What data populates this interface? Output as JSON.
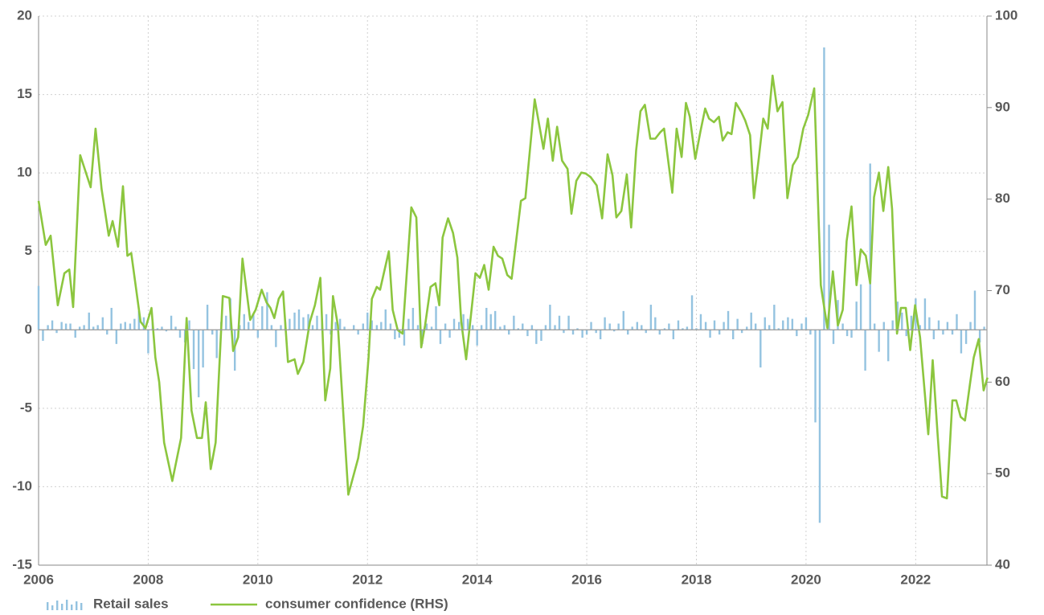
{
  "chart_data": {
    "type": "combo",
    "xlim": [
      2006,
      2023.3
    ],
    "xticks": [
      2006,
      2008,
      2010,
      2012,
      2014,
      2016,
      2018,
      2020,
      2022
    ],
    "ylim": [
      -15,
      20
    ],
    "yticks": [
      -15,
      -10,
      -5,
      0,
      5,
      10,
      15,
      20
    ],
    "y2lim": [
      40,
      100
    ],
    "y2ticks": [
      40,
      50,
      60,
      70,
      80,
      90,
      100
    ],
    "grid": true,
    "series": [
      {
        "name": "Retail sales",
        "type": "bar",
        "color": "#94c3e0",
        "x": [
          2006.0,
          2006.08,
          2006.17,
          2006.25,
          2006.33,
          2006.42,
          2006.5,
          2006.58,
          2006.67,
          2006.75,
          2006.83,
          2006.92,
          2007.0,
          2007.08,
          2007.17,
          2007.25,
          2007.33,
          2007.42,
          2007.5,
          2007.58,
          2007.67,
          2007.75,
          2007.83,
          2007.92,
          2008.0,
          2008.08,
          2008.17,
          2008.25,
          2008.33,
          2008.42,
          2008.5,
          2008.58,
          2008.67,
          2008.75,
          2008.83,
          2008.92,
          2009.0,
          2009.08,
          2009.17,
          2009.25,
          2009.33,
          2009.42,
          2009.5,
          2009.58,
          2009.67,
          2009.75,
          2009.83,
          2009.92,
          2010.0,
          2010.08,
          2010.17,
          2010.25,
          2010.33,
          2010.42,
          2010.5,
          2010.58,
          2010.67,
          2010.75,
          2010.83,
          2010.92,
          2011.0,
          2011.08,
          2011.17,
          2011.25,
          2011.33,
          2011.42,
          2011.5,
          2011.58,
          2011.67,
          2011.75,
          2011.83,
          2011.92,
          2012.0,
          2012.08,
          2012.17,
          2012.25,
          2012.33,
          2012.42,
          2012.5,
          2012.58,
          2012.67,
          2012.75,
          2012.83,
          2012.92,
          2013.0,
          2013.08,
          2013.17,
          2013.25,
          2013.33,
          2013.42,
          2013.5,
          2013.58,
          2013.67,
          2013.75,
          2013.83,
          2013.92,
          2014.0,
          2014.08,
          2014.17,
          2014.25,
          2014.33,
          2014.42,
          2014.5,
          2014.58,
          2014.67,
          2014.75,
          2014.83,
          2014.92,
          2015.0,
          2015.08,
          2015.17,
          2015.25,
          2015.33,
          2015.42,
          2015.5,
          2015.58,
          2015.67,
          2015.75,
          2015.83,
          2015.92,
          2016.0,
          2016.08,
          2016.17,
          2016.25,
          2016.33,
          2016.42,
          2016.5,
          2016.58,
          2016.67,
          2016.75,
          2016.83,
          2016.92,
          2017.0,
          2017.08,
          2017.17,
          2017.25,
          2017.33,
          2017.42,
          2017.5,
          2017.58,
          2017.67,
          2017.75,
          2017.83,
          2017.92,
          2018.0,
          2018.08,
          2018.17,
          2018.25,
          2018.33,
          2018.42,
          2018.5,
          2018.58,
          2018.67,
          2018.75,
          2018.83,
          2018.92,
          2019.0,
          2019.08,
          2019.17,
          2019.25,
          2019.33,
          2019.42,
          2019.5,
          2019.58,
          2019.67,
          2019.75,
          2019.83,
          2019.92,
          2020.0,
          2020.08,
          2020.17,
          2020.25,
          2020.33,
          2020.42,
          2020.5,
          2020.58,
          2020.67,
          2020.75,
          2020.83,
          2020.92,
          2021.0,
          2021.08,
          2021.17,
          2021.25,
          2021.33,
          2021.42,
          2021.5,
          2021.58,
          2021.67,
          2021.75,
          2021.83,
          2021.92,
          2022.0,
          2022.08,
          2022.17,
          2022.25,
          2022.33,
          2022.42,
          2022.5,
          2022.58,
          2022.67,
          2022.75,
          2022.83,
          2022.92,
          2023.0,
          2023.08,
          2023.17,
          2023.25
        ],
        "values": [
          2.8,
          -0.7,
          0.3,
          0.6,
          -0.2,
          0.5,
          0.4,
          0.4,
          -0.5,
          0.2,
          0.3,
          1.1,
          0.2,
          0.3,
          0.8,
          -0.3,
          1.4,
          -0.9,
          0.4,
          0.5,
          0.4,
          0.7,
          1.2,
          0.8,
          -1.5,
          0.5,
          0.1,
          0.2,
          -0.1,
          0.9,
          0.2,
          -0.5,
          -0.8,
          0.6,
          -2.5,
          -4.3,
          -2.4,
          1.6,
          -0.3,
          -1.8,
          0.5,
          0.9,
          2.0,
          -2.6,
          0.3,
          1.0,
          0.5,
          1.0,
          -0.5,
          1.5,
          2.4,
          0.3,
          -1.1,
          0.3,
          0.5,
          0.7,
          1.1,
          1.3,
          0.8,
          1.0,
          0.3,
          0.9,
          0.7,
          1.0,
          -0.3,
          0.5,
          0.7,
          0.2,
          0.0,
          0.3,
          -0.3,
          0.4,
          1.1,
          0.6,
          0.3,
          0.5,
          1.3,
          0.4,
          -0.6,
          -0.5,
          -1.0,
          0.7,
          1.4,
          0.3,
          -0.9,
          0.4,
          0.2,
          1.5,
          -0.9,
          0.4,
          -0.5,
          0.7,
          0.5,
          1.0,
          0.7,
          0.3,
          -1.0,
          0.3,
          1.4,
          1.0,
          1.2,
          0.2,
          0.3,
          -0.3,
          0.9,
          0.1,
          0.4,
          -0.4,
          0.3,
          -0.9,
          -0.7,
          0.3,
          1.6,
          0.3,
          0.9,
          -0.2,
          0.9,
          -0.3,
          0.1,
          -0.5,
          -0.3,
          0.5,
          -0.2,
          -0.6,
          0.8,
          0.4,
          -0.1,
          0.4,
          1.2,
          -0.3,
          0.2,
          0.5,
          0.3,
          -0.2,
          1.6,
          0.8,
          -0.3,
          0.1,
          0.4,
          -0.6,
          0.6,
          0.1,
          0.2,
          2.2,
          0.1,
          1.0,
          0.5,
          -0.5,
          0.6,
          -0.3,
          0.5,
          1.2,
          -0.6,
          0.7,
          -0.2,
          0.2,
          1.1,
          0.4,
          -2.4,
          0.8,
          0.3,
          1.6,
          0.1,
          0.6,
          0.8,
          0.7,
          -0.4,
          0.4,
          0.8,
          -0.3,
          -5.9,
          -12.3,
          18.0,
          6.7,
          -0.9,
          1.9,
          0.4,
          -0.4,
          -0.5,
          1.8,
          2.9,
          -2.6,
          10.6,
          0.4,
          -1.4,
          0.5,
          -2.0,
          0.6,
          1.8,
          1.1,
          -0.4,
          0.9,
          2.0,
          0.3,
          2.0,
          0.8,
          -0.6,
          0.6,
          -0.3,
          0.5,
          -0.3,
          1.0,
          -1.5,
          -0.9,
          0.5,
          2.5,
          -0.8,
          0.2
        ]
      },
      {
        "name": "consumer confidence (RHS)",
        "type": "line",
        "axis": "y2",
        "color": "#8cc63f",
        "x": [
          2006.0,
          2006.13,
          2006.22,
          2006.35,
          2006.47,
          2006.56,
          2006.63,
          2006.76,
          2006.95,
          2007.04,
          2007.15,
          2007.28,
          2007.35,
          2007.45,
          2007.54,
          2007.62,
          2007.69,
          2007.86,
          2007.95,
          2008.06,
          2008.13,
          2008.2,
          2008.29,
          2008.44,
          2008.6,
          2008.7,
          2008.79,
          2008.89,
          2008.98,
          2009.05,
          2009.14,
          2009.23,
          2009.36,
          2009.48,
          2009.55,
          2009.64,
          2009.72,
          2009.86,
          2009.96,
          2010.07,
          2010.16,
          2010.23,
          2010.3,
          2010.38,
          2010.46,
          2010.55,
          2010.67,
          2010.73,
          2010.83,
          2010.95,
          2011.04,
          2011.14,
          2011.23,
          2011.32,
          2011.37,
          2011.46,
          2011.65,
          2011.83,
          2011.92,
          2012.02,
          2012.08,
          2012.17,
          2012.23,
          2012.39,
          2012.46,
          2012.55,
          2012.64,
          2012.8,
          2012.89,
          2012.98,
          2013.05,
          2013.15,
          2013.24,
          2013.31,
          2013.37,
          2013.47,
          2013.56,
          2013.64,
          2013.71,
          2013.8,
          2013.89,
          2013.97,
          2014.05,
          2014.13,
          2014.21,
          2014.3,
          2014.38,
          2014.46,
          2014.55,
          2014.63,
          2014.8,
          2014.88,
          2015.05,
          2015.21,
          2015.29,
          2015.38,
          2015.46,
          2015.55,
          2015.65,
          2015.72,
          2015.81,
          2015.9,
          2015.98,
          2016.07,
          2016.18,
          2016.28,
          2016.38,
          2016.47,
          2016.54,
          2016.63,
          2016.73,
          2016.81,
          2016.9,
          2016.98,
          2017.06,
          2017.16,
          2017.25,
          2017.34,
          2017.41,
          2017.56,
          2017.64,
          2017.73,
          2017.81,
          2017.88,
          2017.98,
          2018.07,
          2018.16,
          2018.23,
          2018.32,
          2018.41,
          2018.48,
          2018.57,
          2018.64,
          2018.72,
          2018.82,
          2018.89,
          2018.98,
          2019.05,
          2019.14,
          2019.22,
          2019.3,
          2019.39,
          2019.48,
          2019.57,
          2019.66,
          2019.76,
          2019.85,
          2019.95,
          2020.04,
          2020.15,
          2020.27,
          2020.39,
          2020.49,
          2020.58,
          2020.67,
          2020.74,
          2020.83,
          2020.92,
          2021.0,
          2021.09,
          2021.17,
          2021.24,
          2021.33,
          2021.41,
          2021.5,
          2021.57,
          2021.66,
          2021.73,
          2021.82,
          2021.9,
          2021.99,
          2022.08,
          2022.23,
          2022.31,
          2022.4,
          2022.48,
          2022.57,
          2022.67,
          2022.74,
          2022.82,
          2022.9,
          2022.99,
          2023.06,
          2023.15,
          2023.24,
          2023.31
        ],
        "values": [
          79.8,
          75.0,
          76.0,
          68.4,
          71.9,
          72.3,
          68.2,
          84.8,
          81.3,
          87.7,
          81.1,
          76.0,
          77.6,
          74.8,
          81.4,
          73.8,
          74.1,
          66.6,
          65.9,
          68.1,
          62.7,
          60.0,
          53.4,
          49.2,
          53.9,
          67.0,
          56.9,
          53.9,
          53.9,
          57.8,
          50.5,
          53.4,
          69.4,
          69.2,
          63.4,
          64.9,
          73.5,
          66.8,
          67.9,
          70.1,
          68.7,
          68.1,
          67.0,
          69.1,
          69.9,
          62.2,
          62.5,
          60.9,
          62.2,
          66.6,
          68.4,
          71.4,
          58.0,
          61.5,
          69.4,
          66.2,
          47.7,
          51.7,
          55.2,
          62.7,
          69.1,
          70.4,
          70.1,
          74.3,
          67.9,
          65.7,
          65.3,
          79.1,
          78.0,
          63.8,
          66.2,
          70.4,
          70.8,
          68.4,
          75.8,
          77.9,
          76.3,
          73.6,
          66.6,
          62.5,
          67.5,
          71.9,
          71.4,
          72.8,
          70.1,
          74.8,
          73.8,
          73.5,
          71.7,
          71.3,
          79.8,
          80.1,
          90.9,
          85.5,
          88.8,
          84.2,
          87.9,
          84.2,
          83.3,
          78.4,
          82.0,
          82.9,
          82.8,
          82.4,
          81.5,
          77.9,
          84.9,
          82.6,
          78.0,
          78.7,
          82.7,
          76.9,
          85.3,
          89.6,
          90.3,
          86.6,
          86.6,
          87.3,
          87.7,
          80.7,
          87.7,
          84.6,
          90.5,
          89.0,
          84.4,
          87.3,
          89.9,
          88.8,
          88.4,
          89.0,
          86.4,
          87.3,
          87.1,
          90.5,
          89.5,
          88.6,
          87.0,
          80.1,
          84.6,
          88.8,
          87.7,
          93.5,
          89.6,
          90.6,
          80.1,
          83.7,
          84.6,
          87.7,
          89.2,
          92.1,
          70.6,
          65.9,
          72.1,
          66.2,
          67.9,
          75.4,
          79.2,
          70.6,
          74.5,
          73.8,
          70.8,
          80.2,
          82.9,
          78.7,
          83.5,
          78.9,
          65.3,
          68.1,
          68.1,
          63.5,
          68.4,
          64.9,
          54.3,
          62.4,
          54.3,
          47.5,
          47.3,
          58.0,
          58.0,
          56.2,
          55.8,
          59.8,
          62.7,
          64.7,
          59.1,
          60.5
        ]
      }
    ]
  }
}
